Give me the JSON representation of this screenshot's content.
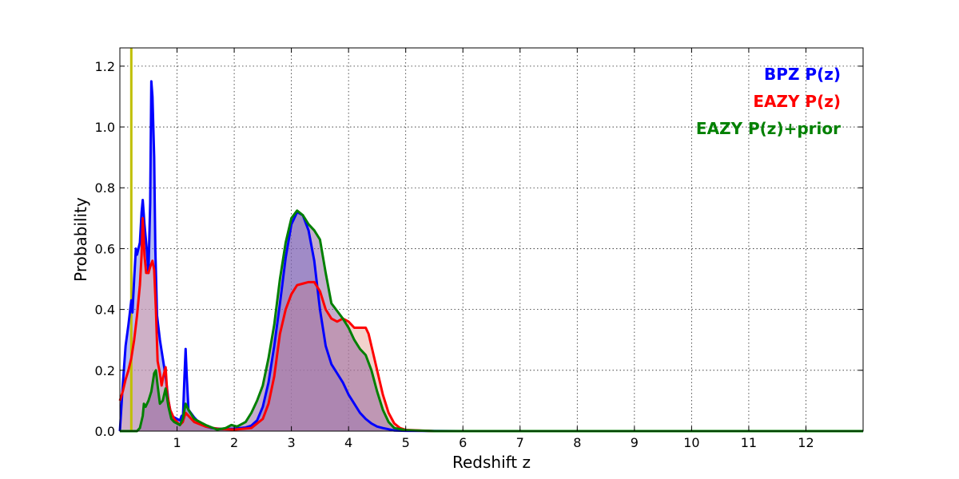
{
  "chart_data": {
    "type": "area",
    "title": "",
    "xlabel": "Redshift z",
    "ylabel": "Probability",
    "xlim": [
      0,
      13
    ],
    "ylim": [
      0,
      1.26
    ],
    "x_ticks": [
      1,
      2,
      3,
      4,
      5,
      6,
      7,
      8,
      9,
      10,
      11,
      12
    ],
    "x_tick_labels": [
      "1",
      "2",
      "3",
      "4",
      "5",
      "6",
      "7",
      "8",
      "9",
      "10",
      "11",
      "12"
    ],
    "y_ticks": [
      0.0,
      0.2,
      0.4,
      0.6,
      0.8,
      1.0,
      1.2
    ],
    "y_tick_labels": [
      "0.0",
      "0.2",
      "0.4",
      "0.6",
      "0.8",
      "1.0",
      "1.2"
    ],
    "grid": true,
    "legend_position": "top-right",
    "reference_line": {
      "x": 0.2,
      "color": "#bfbf00"
    },
    "series": [
      {
        "name": "BPZ P(z)",
        "color": "#0000ff",
        "fill": "#6a78e6",
        "points": [
          [
            0,
            0
          ],
          [
            0.05,
            0.15
          ],
          [
            0.1,
            0.28
          ],
          [
            0.15,
            0.35
          ],
          [
            0.2,
            0.43
          ],
          [
            0.22,
            0.39
          ],
          [
            0.25,
            0.5
          ],
          [
            0.28,
            0.6
          ],
          [
            0.3,
            0.58
          ],
          [
            0.35,
            0.62
          ],
          [
            0.38,
            0.72
          ],
          [
            0.4,
            0.76
          ],
          [
            0.43,
            0.68
          ],
          [
            0.47,
            0.6
          ],
          [
            0.5,
            0.52
          ],
          [
            0.53,
            0.75
          ],
          [
            0.55,
            1.15
          ],
          [
            0.57,
            1.1
          ],
          [
            0.6,
            0.9
          ],
          [
            0.62,
            0.6
          ],
          [
            0.65,
            0.38
          ],
          [
            0.7,
            0.3
          ],
          [
            0.75,
            0.24
          ],
          [
            0.8,
            0.18
          ],
          [
            0.85,
            0.1
          ],
          [
            0.9,
            0.05
          ],
          [
            0.95,
            0.045
          ],
          [
            1.0,
            0.04
          ],
          [
            1.05,
            0.035
          ],
          [
            1.08,
            0.05
          ],
          [
            1.1,
            0.03
          ],
          [
            1.13,
            0.18
          ],
          [
            1.15,
            0.27
          ],
          [
            1.17,
            0.18
          ],
          [
            1.2,
            0.07
          ],
          [
            1.3,
            0.045
          ],
          [
            1.4,
            0.025
          ],
          [
            1.5,
            0.015
          ],
          [
            1.6,
            0.01
          ],
          [
            1.8,
            0.007
          ],
          [
            2.0,
            0.008
          ],
          [
            2.2,
            0.012
          ],
          [
            2.3,
            0.018
          ],
          [
            2.4,
            0.035
          ],
          [
            2.5,
            0.08
          ],
          [
            2.6,
            0.16
          ],
          [
            2.7,
            0.28
          ],
          [
            2.8,
            0.42
          ],
          [
            2.9,
            0.57
          ],
          [
            3.0,
            0.68
          ],
          [
            3.1,
            0.72
          ],
          [
            3.2,
            0.71
          ],
          [
            3.3,
            0.66
          ],
          [
            3.4,
            0.56
          ],
          [
            3.5,
            0.4
          ],
          [
            3.6,
            0.28
          ],
          [
            3.7,
            0.22
          ],
          [
            3.8,
            0.19
          ],
          [
            3.9,
            0.16
          ],
          [
            4.0,
            0.12
          ],
          [
            4.1,
            0.09
          ],
          [
            4.2,
            0.06
          ],
          [
            4.3,
            0.04
          ],
          [
            4.4,
            0.025
          ],
          [
            4.5,
            0.015
          ],
          [
            4.6,
            0.01
          ],
          [
            4.7,
            0.006
          ],
          [
            4.8,
            0.002
          ],
          [
            5.0,
            0.001
          ],
          [
            6.0,
            0.0
          ],
          [
            13.0,
            0.0
          ]
        ]
      },
      {
        "name": "EAZY P(z)",
        "color": "#ff0000",
        "fill": "#e7a59c",
        "points": [
          [
            0,
            0.1
          ],
          [
            0.05,
            0.13
          ],
          [
            0.1,
            0.17
          ],
          [
            0.15,
            0.2
          ],
          [
            0.2,
            0.24
          ],
          [
            0.25,
            0.3
          ],
          [
            0.3,
            0.38
          ],
          [
            0.35,
            0.48
          ],
          [
            0.38,
            0.58
          ],
          [
            0.4,
            0.7
          ],
          [
            0.43,
            0.58
          ],
          [
            0.46,
            0.52
          ],
          [
            0.5,
            0.52
          ],
          [
            0.53,
            0.54
          ],
          [
            0.57,
            0.56
          ],
          [
            0.6,
            0.53
          ],
          [
            0.63,
            0.4
          ],
          [
            0.66,
            0.23
          ],
          [
            0.7,
            0.19
          ],
          [
            0.73,
            0.15
          ],
          [
            0.76,
            0.18
          ],
          [
            0.8,
            0.21
          ],
          [
            0.83,
            0.12
          ],
          [
            0.88,
            0.07
          ],
          [
            0.95,
            0.04
          ],
          [
            1.0,
            0.03
          ],
          [
            1.05,
            0.02
          ],
          [
            1.1,
            0.03
          ],
          [
            1.15,
            0.06
          ],
          [
            1.2,
            0.05
          ],
          [
            1.3,
            0.03
          ],
          [
            1.5,
            0.015
          ],
          [
            1.7,
            0.008
          ],
          [
            2.0,
            0.005
          ],
          [
            2.3,
            0.01
          ],
          [
            2.5,
            0.04
          ],
          [
            2.6,
            0.09
          ],
          [
            2.7,
            0.18
          ],
          [
            2.8,
            0.32
          ],
          [
            2.9,
            0.4
          ],
          [
            3.0,
            0.45
          ],
          [
            3.1,
            0.48
          ],
          [
            3.2,
            0.485
          ],
          [
            3.3,
            0.49
          ],
          [
            3.4,
            0.49
          ],
          [
            3.5,
            0.46
          ],
          [
            3.6,
            0.4
          ],
          [
            3.7,
            0.37
          ],
          [
            3.8,
            0.36
          ],
          [
            3.9,
            0.37
          ],
          [
            4.0,
            0.36
          ],
          [
            4.1,
            0.34
          ],
          [
            4.2,
            0.34
          ],
          [
            4.3,
            0.34
          ],
          [
            4.35,
            0.32
          ],
          [
            4.4,
            0.28
          ],
          [
            4.5,
            0.2
          ],
          [
            4.6,
            0.12
          ],
          [
            4.7,
            0.06
          ],
          [
            4.8,
            0.025
          ],
          [
            4.9,
            0.01
          ],
          [
            5.0,
            0.004
          ],
          [
            5.5,
            0.0
          ],
          [
            13.0,
            0.0
          ]
        ]
      },
      {
        "name": "EAZY P(z)+prior",
        "color": "#008000",
        "fill": "#8b5b9b",
        "points": [
          [
            0,
            0
          ],
          [
            0.2,
            0.0
          ],
          [
            0.3,
            0.0
          ],
          [
            0.35,
            0.01
          ],
          [
            0.4,
            0.05
          ],
          [
            0.42,
            0.09
          ],
          [
            0.45,
            0.08
          ],
          [
            0.5,
            0.1
          ],
          [
            0.55,
            0.13
          ],
          [
            0.6,
            0.19
          ],
          [
            0.63,
            0.2
          ],
          [
            0.66,
            0.15
          ],
          [
            0.7,
            0.09
          ],
          [
            0.75,
            0.1
          ],
          [
            0.8,
            0.14
          ],
          [
            0.85,
            0.08
          ],
          [
            0.9,
            0.04
          ],
          [
            0.95,
            0.03
          ],
          [
            1.0,
            0.025
          ],
          [
            1.05,
            0.02
          ],
          [
            1.1,
            0.04
          ],
          [
            1.15,
            0.09
          ],
          [
            1.2,
            0.07
          ],
          [
            1.3,
            0.04
          ],
          [
            1.5,
            0.02
          ],
          [
            1.7,
            0.005
          ],
          [
            1.85,
            0.01
          ],
          [
            1.95,
            0.02
          ],
          [
            2.05,
            0.015
          ],
          [
            2.2,
            0.03
          ],
          [
            2.3,
            0.06
          ],
          [
            2.4,
            0.1
          ],
          [
            2.5,
            0.15
          ],
          [
            2.6,
            0.24
          ],
          [
            2.7,
            0.35
          ],
          [
            2.8,
            0.5
          ],
          [
            2.9,
            0.62
          ],
          [
            3.0,
            0.7
          ],
          [
            3.1,
            0.725
          ],
          [
            3.2,
            0.71
          ],
          [
            3.3,
            0.68
          ],
          [
            3.4,
            0.66
          ],
          [
            3.5,
            0.63
          ],
          [
            3.6,
            0.52
          ],
          [
            3.7,
            0.42
          ],
          [
            3.8,
            0.395
          ],
          [
            3.9,
            0.37
          ],
          [
            4.0,
            0.34
          ],
          [
            4.1,
            0.3
          ],
          [
            4.2,
            0.27
          ],
          [
            4.3,
            0.25
          ],
          [
            4.4,
            0.2
          ],
          [
            4.5,
            0.13
          ],
          [
            4.6,
            0.07
          ],
          [
            4.7,
            0.03
          ],
          [
            4.8,
            0.01
          ],
          [
            5.0,
            0.003
          ],
          [
            5.5,
            0.0
          ],
          [
            13.0,
            0.0
          ]
        ]
      }
    ]
  }
}
